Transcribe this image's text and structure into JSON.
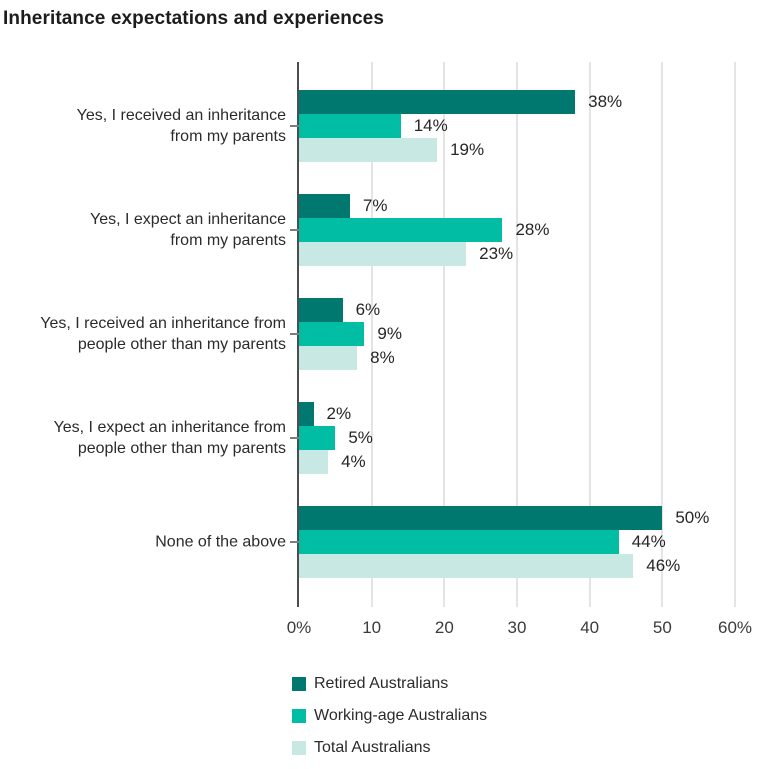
{
  "title": "Inheritance expectations and experiences",
  "chart_data": {
    "type": "bar",
    "orientation": "horizontal",
    "title": "Inheritance expectations and experiences",
    "categories": [
      "Yes, I received an inheritance from my parents",
      "Yes, I expect an inheritance from my parents",
      "Yes, I received an inheritance from people other than my parents",
      "Yes, I expect an inheritance from people other than my parents",
      "None of the above"
    ],
    "category_lines": [
      [
        "Yes, I received an inheritance",
        "from my parents"
      ],
      [
        "Yes, I expect an inheritance",
        "from my parents"
      ],
      [
        "Yes, I received an inheritance from",
        "people other than my parents"
      ],
      [
        "Yes, I expect an inheritance from",
        "people other than my parents"
      ],
      [
        "None of the above"
      ]
    ],
    "series": [
      {
        "name": "Retired Australians",
        "color": "#00786F",
        "values": [
          38,
          7,
          6,
          2,
          50
        ]
      },
      {
        "name": "Working-age Australians",
        "color": "#00BDA4",
        "values": [
          14,
          28,
          9,
          5,
          44
        ]
      },
      {
        "name": "Total Australians",
        "color": "#C8E8E4",
        "values": [
          19,
          23,
          8,
          4,
          46
        ]
      }
    ],
    "value_label_suffix": "%",
    "xlim": [
      0,
      60
    ],
    "x_tick_values": [
      0,
      10,
      20,
      30,
      40,
      50,
      60
    ],
    "x_tick_labels": [
      "0%",
      "10",
      "20",
      "30",
      "40",
      "50",
      "60%"
    ],
    "grid": true,
    "legend_position": "bottom"
  },
  "colors": {
    "axis": "#4d4d4d",
    "gridline": "#e4e4e4",
    "tick": "#7d7d7d",
    "text": "#2b2b2b",
    "title_text": "#1c1c1c"
  }
}
